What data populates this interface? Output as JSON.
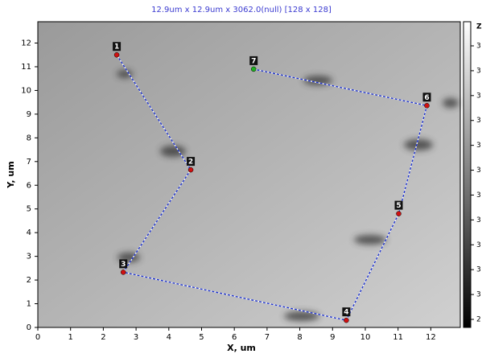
{
  "chart_data": {
    "type": "scatter",
    "title": "12.9um x 12.9um x 3062.0(null) [128 x 128]",
    "xlabel": "X, um",
    "ylabel": "Y, um",
    "x": [
      2.41,
      4.67,
      2.61,
      9.42,
      11.02,
      11.88,
      6.59
    ],
    "values": [
      11.5,
      6.65,
      2.33,
      0.3,
      4.8,
      9.36,
      10.9
    ],
    "point_labels": [
      "1",
      "2",
      "3",
      "4",
      "5",
      "6",
      "7"
    ],
    "point_colors": [
      "#d01010",
      "#d01010",
      "#d01010",
      "#d01010",
      "#d01010",
      "#d01010",
      "#20b020"
    ],
    "line_color": "#1a2fd0",
    "xlim": [
      0,
      12.9
    ],
    "ylim": [
      0,
      12.9
    ],
    "xticks": [
      0,
      1,
      2,
      3,
      4,
      5,
      6,
      7,
      8,
      9,
      10,
      11,
      12
    ],
    "yticks": [
      0,
      1,
      2,
      3,
      4,
      5,
      6,
      7,
      8,
      9,
      10,
      11,
      12
    ],
    "colorbar": {
      "label": "Z",
      "tick_labels": [
        "3",
        "3",
        "3",
        "3",
        "3",
        "3",
        "3",
        "3",
        "3",
        "3",
        "3",
        "2"
      ]
    }
  }
}
